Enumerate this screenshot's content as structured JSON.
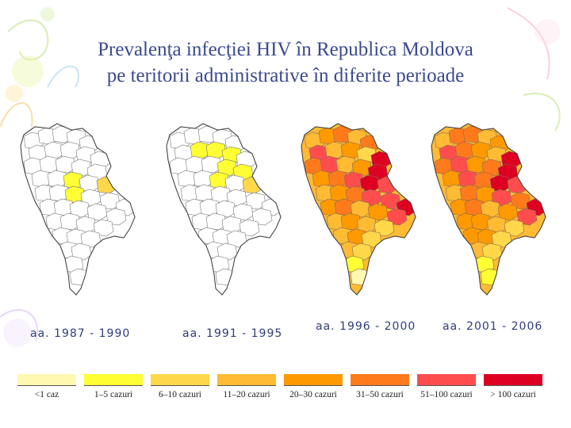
{
  "title": {
    "line1": "Prevalenţa infecţiei HIV în Republica Moldova",
    "line2": "pe teritorii administrative în diferite perioade"
  },
  "maps": [
    {
      "period": "aa. 1987 - 1990"
    },
    {
      "period": "aa. 1991 - 1995"
    },
    {
      "period": "aa. 1996 - 2000"
    },
    {
      "period": "aa. 2001 - 2006"
    }
  ],
  "legend": [
    {
      "label": "<1 caz",
      "color": "#fff8b0"
    },
    {
      "label": "1–5 cazuri",
      "color": "#ffff33"
    },
    {
      "label": "6–10 cazuri",
      "color": "#ffd84a"
    },
    {
      "label": "11–20 cazuri",
      "color": "#ffbb33"
    },
    {
      "label": "20–30 cazuri",
      "color": "#ff9900"
    },
    {
      "label": "31–50 cazuri",
      "color": "#ff7a1a"
    },
    {
      "label": "51–100 cazuri",
      "color": "#ff4d4d"
    },
    {
      "label": "> 100 cazuri",
      "color": "#dd0022"
    }
  ]
}
